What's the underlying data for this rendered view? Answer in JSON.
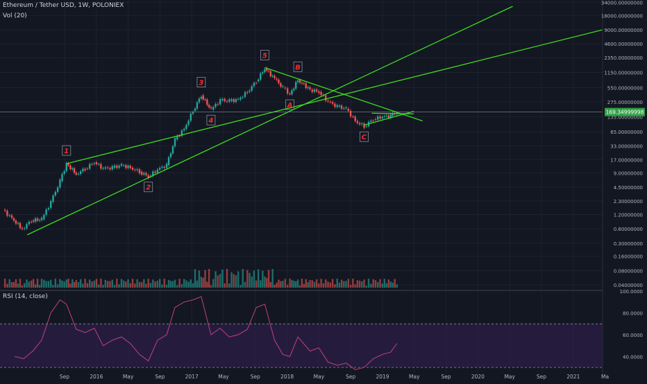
{
  "header": {
    "symbol_line": "Ethereum / Tether USD, 1W, POLONIEX",
    "volume_label": "Vol (20)"
  },
  "rsi_panel": {
    "label": "RSI (14, close)",
    "ticks": [
      "100.0000",
      "80.0000",
      "60.0000",
      "40.0000"
    ]
  },
  "price_axis": {
    "ticks": [
      "34000.00000000",
      "18000.00000000",
      "9000.00000000",
      "4600.00000000",
      "2350.00000000",
      "1150.00000000",
      "550.00000000",
      "275.00000000",
      "135.00000000",
      "65.00000000",
      "33.00000000",
      "17.00000000",
      "9.00000000",
      "4.50000000",
      "2.30000000",
      "1.20000000",
      "0.60000000",
      "0.30000000",
      "0.16000000",
      "0.08000000",
      "0.04000000"
    ],
    "current_price": "169.34999998"
  },
  "time_axis": {
    "ticks": [
      "Sep",
      "2016",
      "May",
      "Sep",
      "2017",
      "May",
      "Sep",
      "2018",
      "May",
      "Sep",
      "2019",
      "May",
      "Sep",
      "2020",
      "May",
      "Sep",
      "2021",
      "Ma"
    ]
  },
  "wave_labels": [
    "1",
    "2",
    "3",
    "4",
    "5",
    "A",
    "B",
    "C"
  ],
  "colors": {
    "background": "#131722",
    "grid": "#1e2230",
    "up_candle": "#26a69a",
    "down_candle": "#ef5350",
    "trendline": "#3ddc1e",
    "label": "#ff2a2a",
    "rsi_line": "#c2427a",
    "rsi_band": "#2a1e45",
    "price_tag": "#2ea043"
  },
  "chart_data": {
    "type": "candlestick",
    "title": "Ethereum / Tether USD, 1W, POLONIEX",
    "y_scale": "log",
    "ylim": [
      0.035,
      38000
    ],
    "xlim": [
      "2015-08-01",
      "2021-03-01"
    ],
    "price_series": [
      {
        "date": "2015-08-10",
        "close": 1.5
      },
      {
        "date": "2015-09-10",
        "close": 1.0
      },
      {
        "date": "2015-10-15",
        "close": 0.6
      },
      {
        "date": "2015-11-15",
        "close": 0.9
      },
      {
        "date": "2015-12-20",
        "close": 0.95
      },
      {
        "date": "2016-01-20",
        "close": 2.2
      },
      {
        "date": "2016-02-20",
        "close": 6.0
      },
      {
        "date": "2016-03-13",
        "close": 14.0
      },
      {
        "date": "2016-04-15",
        "close": 8.5
      },
      {
        "date": "2016-05-15",
        "close": 11.0
      },
      {
        "date": "2016-06-15",
        "close": 15.0
      },
      {
        "date": "2016-07-15",
        "close": 11.0
      },
      {
        "date": "2016-08-15",
        "close": 11.5
      },
      {
        "date": "2016-09-15",
        "close": 13.0
      },
      {
        "date": "2016-10-15",
        "close": 11.5
      },
      {
        "date": "2016-11-15",
        "close": 9.5
      },
      {
        "date": "2016-12-15",
        "close": 7.5
      },
      {
        "date": "2017-01-15",
        "close": 10.5
      },
      {
        "date": "2017-02-15",
        "close": 13.0
      },
      {
        "date": "2017-03-15",
        "close": 45.0
      },
      {
        "date": "2017-04-15",
        "close": 75.0
      },
      {
        "date": "2017-05-15",
        "close": 180.0
      },
      {
        "date": "2017-06-12",
        "close": 380.0
      },
      {
        "date": "2017-07-15",
        "close": 190.0
      },
      {
        "date": "2017-08-15",
        "close": 300.0
      },
      {
        "date": "2017-09-15",
        "close": 290.0
      },
      {
        "date": "2017-10-15",
        "close": 310.0
      },
      {
        "date": "2017-11-15",
        "close": 450.0
      },
      {
        "date": "2017-12-15",
        "close": 750.0
      },
      {
        "date": "2018-01-13",
        "close": 1400.0
      },
      {
        "date": "2018-02-15",
        "close": 850.0
      },
      {
        "date": "2018-03-15",
        "close": 550.0
      },
      {
        "date": "2018-04-08",
        "close": 400.0
      },
      {
        "date": "2018-05-05",
        "close": 800.0
      },
      {
        "date": "2018-06-15",
        "close": 500.0
      },
      {
        "date": "2018-07-15",
        "close": 450.0
      },
      {
        "date": "2018-08-15",
        "close": 280.0
      },
      {
        "date": "2018-09-15",
        "close": 220.0
      },
      {
        "date": "2018-10-15",
        "close": 200.0
      },
      {
        "date": "2018-11-15",
        "close": 110.0
      },
      {
        "date": "2018-12-15",
        "close": 85.0
      },
      {
        "date": "2019-01-15",
        "close": 120.0
      },
      {
        "date": "2019-02-15",
        "close": 135.0
      },
      {
        "date": "2019-03-15",
        "close": 140.0
      },
      {
        "date": "2019-04-05",
        "close": 169.35
      }
    ],
    "trendlines": [
      {
        "from": {
          "date": "2016-03-13",
          "price": 14.0
        },
        "to": {
          "date": "2021-03-01",
          "price": 9000.0
        }
      },
      {
        "from": {
          "date": "2015-11-01",
          "price": 0.45
        },
        "to": {
          "date": "2020-05-01",
          "price": 28000.0
        }
      },
      {
        "from": {
          "date": "2018-01-13",
          "price": 1450.0
        },
        "to": {
          "date": "2019-07-01",
          "price": 110.0
        }
      },
      {
        "from": {
          "date": "2018-12-15",
          "price": 90.0
        },
        "to": {
          "date": "2019-06-01",
          "price": 175.0
        }
      },
      {
        "from": {
          "date": "2019-01-10",
          "price": 160.0
        },
        "to": {
          "date": "2019-06-01",
          "price": 155.0
        }
      }
    ],
    "wave_points": [
      {
        "label": "1",
        "date": "2016-03-13",
        "price": 14.0
      },
      {
        "label": "2",
        "date": "2016-12-15",
        "price": 7.5
      },
      {
        "label": "3",
        "date": "2017-06-12",
        "price": 380.0
      },
      {
        "label": "4",
        "date": "2017-07-15",
        "price": 190.0
      },
      {
        "label": "5",
        "date": "2018-01-13",
        "price": 1400.0
      },
      {
        "label": "A",
        "date": "2018-04-08",
        "price": 400.0
      },
      {
        "label": "B",
        "date": "2018-05-05",
        "price": 800.0
      },
      {
        "label": "C",
        "date": "2018-12-15",
        "price": 85.0
      }
    ],
    "rsi": {
      "ylim": [
        25,
        100
      ],
      "bands": [
        30,
        70
      ],
      "points": [
        {
          "date": "2015-09-20",
          "value": 40
        },
        {
          "date": "2015-10-20",
          "value": 38
        },
        {
          "date": "2015-11-20",
          "value": 45
        },
        {
          "date": "2015-12-20",
          "value": 55
        },
        {
          "date": "2016-01-20",
          "value": 80
        },
        {
          "date": "2016-02-20",
          "value": 92
        },
        {
          "date": "2016-03-13",
          "value": 88
        },
        {
          "date": "2016-04-15",
          "value": 65
        },
        {
          "date": "2016-05-15",
          "value": 62
        },
        {
          "date": "2016-06-15",
          "value": 66
        },
        {
          "date": "2016-07-15",
          "value": 50
        },
        {
          "date": "2016-08-15",
          "value": 55
        },
        {
          "date": "2016-09-15",
          "value": 58
        },
        {
          "date": "2016-10-15",
          "value": 52
        },
        {
          "date": "2016-11-15",
          "value": 42
        },
        {
          "date": "2016-12-15",
          "value": 36
        },
        {
          "date": "2017-01-15",
          "value": 55
        },
        {
          "date": "2017-02-15",
          "value": 60
        },
        {
          "date": "2017-03-15",
          "value": 85
        },
        {
          "date": "2017-04-15",
          "value": 90
        },
        {
          "date": "2017-05-15",
          "value": 92
        },
        {
          "date": "2017-06-12",
          "value": 95
        },
        {
          "date": "2017-07-15",
          "value": 60
        },
        {
          "date": "2017-08-15",
          "value": 66
        },
        {
          "date": "2017-09-15",
          "value": 58
        },
        {
          "date": "2017-10-15",
          "value": 60
        },
        {
          "date": "2017-11-15",
          "value": 65
        },
        {
          "date": "2017-12-15",
          "value": 85
        },
        {
          "date": "2018-01-13",
          "value": 88
        },
        {
          "date": "2018-02-15",
          "value": 55
        },
        {
          "date": "2018-03-15",
          "value": 42
        },
        {
          "date": "2018-04-08",
          "value": 40
        },
        {
          "date": "2018-05-05",
          "value": 58
        },
        {
          "date": "2018-06-15",
          "value": 45
        },
        {
          "date": "2018-07-15",
          "value": 48
        },
        {
          "date": "2018-08-15",
          "value": 35
        },
        {
          "date": "2018-09-15",
          "value": 32
        },
        {
          "date": "2018-10-15",
          "value": 34
        },
        {
          "date": "2018-11-15",
          "value": 28
        },
        {
          "date": "2018-12-15",
          "value": 30
        },
        {
          "date": "2019-01-15",
          "value": 38
        },
        {
          "date": "2019-02-15",
          "value": 42
        },
        {
          "date": "2019-03-15",
          "value": 44
        },
        {
          "date": "2019-04-05",
          "value": 52
        }
      ]
    }
  }
}
